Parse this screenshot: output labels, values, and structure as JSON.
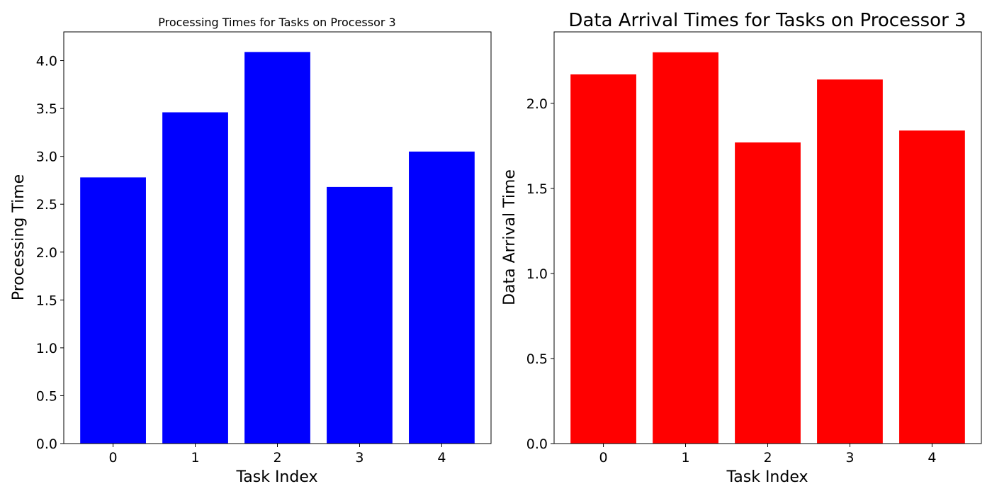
{
  "chart_data": [
    {
      "type": "bar",
      "title": "Processing Times for Tasks on Processor 3",
      "xlabel": "Task Index",
      "ylabel": "Processing Time",
      "categories": [
        "0",
        "1",
        "2",
        "3",
        "4"
      ],
      "values": [
        2.78,
        3.46,
        4.09,
        2.68,
        3.05
      ],
      "ylim": [
        0,
        4.3
      ],
      "yticks": [
        "0.0",
        "0.5",
        "1.0",
        "1.5",
        "2.0",
        "2.5",
        "3.0",
        "3.5",
        "4.0"
      ],
      "color": "#0000ff",
      "grid": false,
      "legend": "none"
    },
    {
      "type": "bar",
      "title": "Data Arrival Times for Tasks on Processor 3",
      "xlabel": "Task Index",
      "ylabel": "Data Arrival Time",
      "categories": [
        "0",
        "1",
        "2",
        "3",
        "4"
      ],
      "values": [
        2.17,
        2.3,
        1.77,
        2.14,
        1.84
      ],
      "ylim": [
        0,
        2.42
      ],
      "yticks": [
        "0.0",
        "0.5",
        "1.0",
        "1.5",
        "2.0"
      ],
      "color": "#ff0000",
      "grid": false,
      "legend": "none"
    }
  ]
}
